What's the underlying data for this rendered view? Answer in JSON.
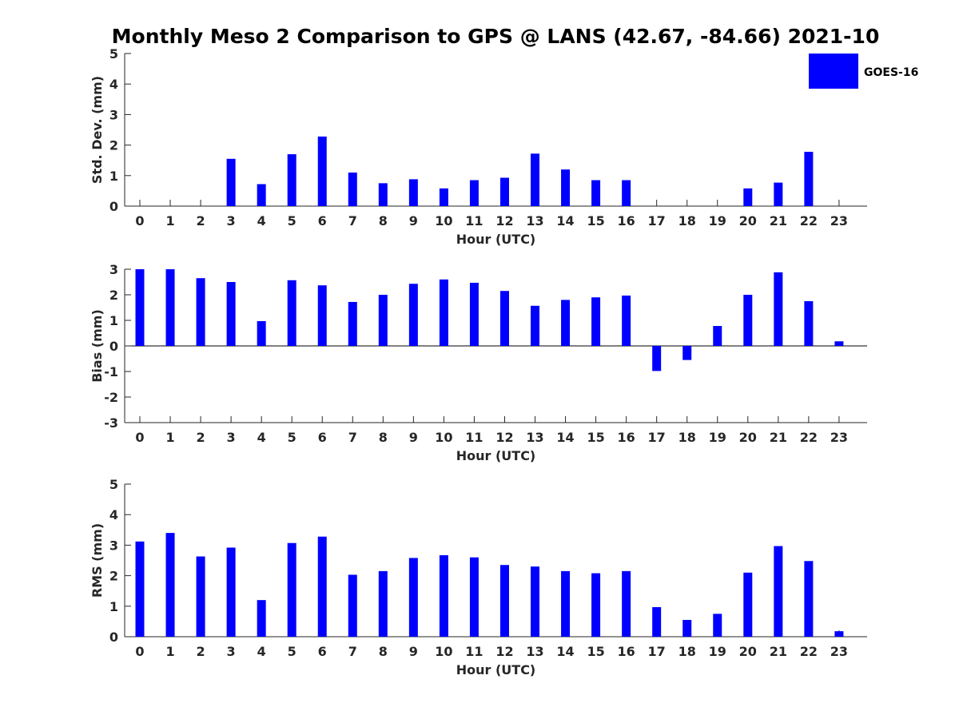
{
  "title": "Monthly Meso 2 Comparison to GPS @ LANS (42.67, -84.66) 2021-10",
  "legend": {
    "label": "GOES-16",
    "placement": "top-right"
  },
  "colors": {
    "bar": "#0000ff",
    "axis": "#262626"
  },
  "chart_data": [
    {
      "type": "bar",
      "xlabel": "Hour (UTC)",
      "ylabel": "Std. Dev. (mm)",
      "ylim": [
        0,
        5
      ],
      "yticks": [
        0,
        1,
        2,
        3,
        4,
        5
      ],
      "categories": [
        "0",
        "1",
        "2",
        "3",
        "4",
        "5",
        "6",
        "7",
        "8",
        "9",
        "10",
        "11",
        "12",
        "13",
        "14",
        "15",
        "16",
        "17",
        "18",
        "19",
        "20",
        "21",
        "22",
        "23"
      ],
      "series": [
        {
          "name": "GOES-16",
          "values": [
            0,
            0,
            0,
            1.55,
            0.72,
            1.7,
            2.28,
            1.1,
            0.75,
            0.88,
            0.58,
            0.85,
            0.93,
            1.72,
            1.2,
            0.85,
            0.85,
            0,
            0,
            0,
            0.58,
            0.77,
            1.78,
            0
          ]
        }
      ]
    },
    {
      "type": "bar",
      "xlabel": "Hour (UTC)",
      "ylabel": "Bias (mm)",
      "ylim": [
        -3,
        3
      ],
      "yticks": [
        -3,
        -2,
        -1,
        0,
        1,
        2,
        3
      ],
      "categories": [
        "0",
        "1",
        "2",
        "3",
        "4",
        "5",
        "6",
        "7",
        "8",
        "9",
        "10",
        "11",
        "12",
        "13",
        "14",
        "15",
        "16",
        "17",
        "18",
        "19",
        "20",
        "21",
        "22",
        "23"
      ],
      "series": [
        {
          "name": "GOES-16",
          "values": [
            3.0,
            3.0,
            2.65,
            2.5,
            0.97,
            2.57,
            2.37,
            1.72,
            2.0,
            2.43,
            2.6,
            2.47,
            2.15,
            1.57,
            1.8,
            1.9,
            1.97,
            -0.98,
            -0.55,
            0.78,
            2.0,
            2.88,
            1.75,
            0.18
          ]
        }
      ]
    },
    {
      "type": "bar",
      "xlabel": "Hour (UTC)",
      "ylabel": "RMS (mm)",
      "ylim": [
        0,
        5
      ],
      "yticks": [
        0,
        1,
        2,
        3,
        4,
        5
      ],
      "categories": [
        "0",
        "1",
        "2",
        "3",
        "4",
        "5",
        "6",
        "7",
        "8",
        "9",
        "10",
        "11",
        "12",
        "13",
        "14",
        "15",
        "16",
        "17",
        "18",
        "19",
        "20",
        "21",
        "22",
        "23"
      ],
      "series": [
        {
          "name": "GOES-16",
          "values": [
            3.12,
            3.4,
            2.63,
            2.92,
            1.2,
            3.07,
            3.28,
            2.03,
            2.15,
            2.58,
            2.67,
            2.6,
            2.35,
            2.3,
            2.15,
            2.08,
            2.15,
            0.97,
            0.55,
            0.75,
            2.1,
            2.97,
            2.48,
            0.18
          ]
        }
      ]
    }
  ]
}
